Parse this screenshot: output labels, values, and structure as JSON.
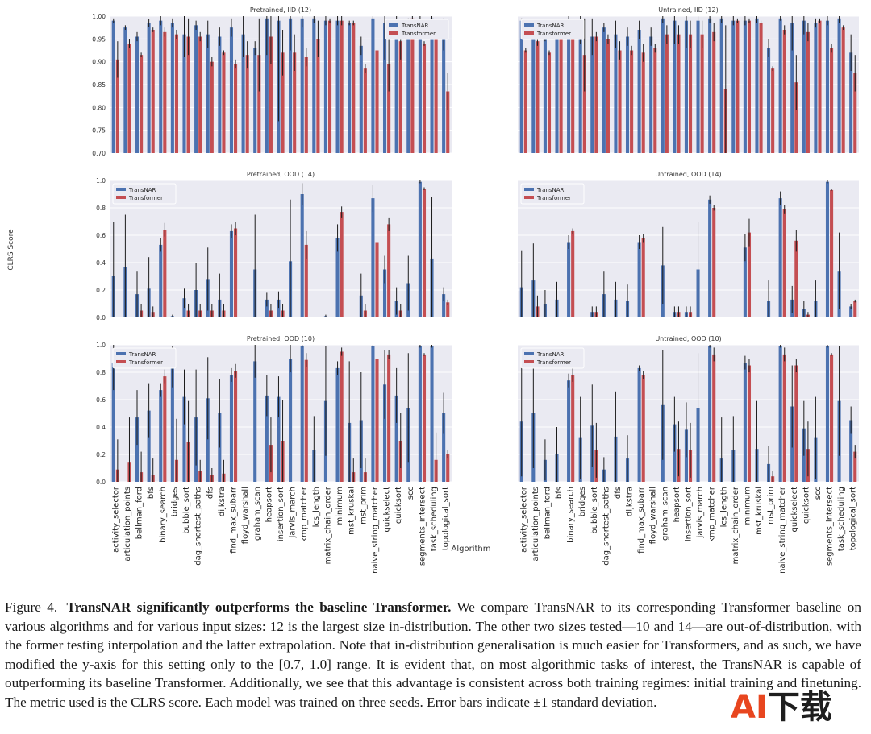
{
  "algorithms": [
    "activity_selector",
    "articulation_points",
    "bellman_ford",
    "bfs",
    "binary_search",
    "bridges",
    "bubble_sort",
    "dag_shortest_paths",
    "dfs",
    "dijkstra",
    "find_max_subarr",
    "floyd_warshall",
    "graham_scan",
    "heapsort",
    "insertion_sort",
    "jarvis_march",
    "kmp_matcher",
    "lcs_length",
    "matrix_chain_order",
    "minimum",
    "mst_kruskal",
    "mst_prim",
    "naive_string_matcher",
    "quickselect",
    "quicksort",
    "scc",
    "segments_intersect",
    "task_scheduling",
    "topological_sort"
  ],
  "figure": {
    "ylabel": "CLRS Score",
    "xlabel": "Algorithm",
    "legend": [
      "TransNAR",
      "Transformer"
    ],
    "colors": {
      "transnar": "#4c72b0",
      "transformer": "#c44e52",
      "panel_bg": "#eaeaf2",
      "grid": "#ffffff",
      "error_bar": "#1c1c1c"
    }
  },
  "chart_data": [
    {
      "type": "bar",
      "title": "Pretrained, IID (12)",
      "ylim": [
        0.7,
        1.0
      ],
      "yticks": [
        "0.70",
        "0.75",
        "0.80",
        "0.85",
        "0.90",
        "0.95",
        "1.00"
      ],
      "yvals": [
        0.7,
        0.75,
        0.8,
        0.85,
        0.9,
        0.95,
        1.0
      ],
      "legend_position": "top-right",
      "grid": true,
      "series": [
        {
          "name": "TransNAR",
          "values": [
            0.99,
            0.975,
            0.955,
            0.985,
            0.99,
            0.985,
            0.96,
            0.98,
            0.96,
            0.955,
            0.975,
            0.96,
            0.93,
            0.995,
            0.99,
            0.995,
            0.995,
            0.995,
            0.99,
            0.99,
            0.985,
            0.935,
            0.995,
            0.985,
            0.99,
            0.985,
            0.99,
            0.995,
            0.96
          ],
          "errors": [
            0.005,
            0.005,
            0.01,
            0.008,
            0.01,
            0.01,
            0.05,
            0.01,
            0.03,
            0.02,
            0.02,
            0.05,
            0.015,
            0.08,
            0.22,
            0.07,
            0.02,
            0.01,
            0.01,
            0.01,
            0.005,
            0.02,
            0.005,
            0.08,
            0.03,
            0.01,
            0.01,
            0.01,
            0.035
          ]
        },
        {
          "name": "Transformer",
          "values": [
            0.905,
            0.94,
            0.915,
            0.97,
            0.965,
            0.96,
            0.955,
            0.955,
            0.9,
            0.92,
            0.895,
            0.915,
            0.915,
            0.955,
            0.92,
            0.92,
            0.91,
            0.95,
            0.99,
            0.99,
            0.985,
            0.885,
            0.925,
            0.895,
            0.945,
            0.995,
            0.94,
            0.975,
            0.835
          ],
          "errors": [
            0.04,
            0.01,
            0.005,
            0.005,
            0.01,
            0.01,
            0.04,
            0.01,
            0.01,
            0.005,
            0.01,
            0.03,
            0.08,
            0.06,
            0.05,
            0.04,
            0.02,
            0.04,
            0.005,
            0.01,
            0.005,
            0.01,
            0.03,
            0.06,
            0.04,
            0.005,
            0.005,
            0.005,
            0.04
          ]
        }
      ]
    },
    {
      "type": "bar",
      "title": "Untrained, IID (12)",
      "ylim": [
        0.7,
        1.0
      ],
      "yticks": [],
      "yvals": [
        0.7,
        0.75,
        0.8,
        0.85,
        0.9,
        0.95,
        1.0
      ],
      "legend_position": "top-left",
      "grid": true,
      "series": [
        {
          "name": "TransNAR",
          "values": [
            0.99,
            0.975,
            0.955,
            0.985,
            0.99,
            0.97,
            0.955,
            0.975,
            0.96,
            0.955,
            0.97,
            0.955,
            0.995,
            0.99,
            0.99,
            0.99,
            0.995,
            0.995,
            0.99,
            0.99,
            0.995,
            0.93,
            0.995,
            0.985,
            0.99,
            0.985,
            0.99,
            0.995,
            0.92
          ],
          "errors": [
            0.005,
            0.005,
            0.01,
            0.008,
            0.01,
            0.03,
            0.04,
            0.01,
            0.03,
            0.02,
            0.02,
            0.02,
            0.01,
            0.05,
            0.06,
            0.02,
            0.01,
            0.01,
            0.01,
            0.01,
            0.01,
            0.02,
            0.005,
            0.06,
            0.03,
            0.01,
            0.01,
            0.01,
            0.04
          ]
        },
        {
          "name": "Transformer",
          "values": [
            0.925,
            0.945,
            0.92,
            0.97,
            0.965,
            0.915,
            0.955,
            0.95,
            0.925,
            0.925,
            0.92,
            0.93,
            0.96,
            0.96,
            0.96,
            0.96,
            0.965,
            0.84,
            0.99,
            0.99,
            0.985,
            0.885,
            0.97,
            0.855,
            0.965,
            0.99,
            0.93,
            0.975,
            0.875
          ],
          "errors": [
            0.005,
            0.01,
            0.005,
            0.005,
            0.01,
            0.08,
            0.01,
            0.01,
            0.02,
            0.01,
            0.02,
            0.01,
            0.02,
            0.02,
            0.03,
            0.03,
            0.02,
            0.14,
            0.005,
            0.005,
            0.005,
            0.005,
            0.01,
            0.06,
            0.02,
            0.005,
            0.01,
            0.005,
            0.04
          ]
        }
      ]
    },
    {
      "type": "bar",
      "title": "Pretrained, OOD (14)",
      "ylim": [
        0.0,
        1.0
      ],
      "yticks": [
        "0.0",
        "0.2",
        "0.4",
        "0.6",
        "0.8",
        "1.0"
      ],
      "yvals": [
        0.0,
        0.2,
        0.4,
        0.6,
        0.8,
        1.0
      ],
      "legend_position": "top-left",
      "grid": true,
      "series": [
        {
          "name": "TransNAR",
          "values": [
            0.3,
            0.37,
            0.17,
            0.21,
            0.53,
            0.01,
            0.14,
            0.2,
            0.28,
            0.13,
            0.63,
            0.0,
            0.35,
            0.13,
            0.13,
            0.41,
            0.9,
            0.0,
            0.01,
            0.58,
            0.0,
            0.16,
            0.87,
            0.35,
            0.12,
            0.25,
            0.99,
            0.43,
            0.17
          ],
          "errors": [
            0.4,
            0.38,
            0.17,
            0.23,
            0.05,
            0.01,
            0.07,
            0.2,
            0.23,
            0.19,
            0.05,
            0.0,
            0.4,
            0.05,
            0.06,
            0.45,
            0.08,
            0.0,
            0.01,
            0.1,
            0.0,
            0.16,
            0.1,
            0.1,
            0.1,
            0.2,
            0.01,
            0.45,
            0.05
          ]
        },
        {
          "name": "Transformer",
          "values": [
            0.0,
            0.0,
            0.05,
            0.04,
            0.64,
            0.0,
            0.05,
            0.05,
            0.05,
            0.05,
            0.65,
            0.0,
            0.0,
            0.05,
            0.05,
            0.0,
            0.53,
            0.0,
            0.0,
            0.77,
            0.0,
            0.05,
            0.55,
            0.68,
            0.05,
            0.0,
            0.94,
            0.0,
            0.11
          ],
          "errors": [
            0.0,
            0.0,
            0.05,
            0.04,
            0.05,
            0.0,
            0.05,
            0.05,
            0.05,
            0.05,
            0.05,
            0.0,
            0.0,
            0.05,
            0.05,
            0.0,
            0.1,
            0.0,
            0.0,
            0.04,
            0.0,
            0.05,
            0.1,
            0.05,
            0.05,
            0.0,
            0.01,
            0.0,
            0.02
          ]
        }
      ]
    },
    {
      "type": "bar",
      "title": "Untrained, OOD (14)",
      "ylim": [
        0.0,
        1.0
      ],
      "yticks": [],
      "yvals": [
        0.0,
        0.2,
        0.4,
        0.6,
        0.8,
        1.0
      ],
      "legend_position": "top-left",
      "grid": true,
      "series": [
        {
          "name": "TransNAR",
          "values": [
            0.22,
            0.27,
            0.1,
            0.13,
            0.55,
            0.0,
            0.04,
            0.17,
            0.13,
            0.12,
            0.55,
            0.0,
            0.38,
            0.04,
            0.04,
            0.35,
            0.86,
            0.0,
            0.0,
            0.51,
            0.0,
            0.12,
            0.87,
            0.13,
            0.06,
            0.12,
            0.99,
            0.34,
            0.08
          ],
          "errors": [
            0.27,
            0.27,
            0.1,
            0.13,
            0.05,
            0.0,
            0.04,
            0.17,
            0.13,
            0.12,
            0.05,
            0.0,
            0.28,
            0.04,
            0.04,
            0.35,
            0.03,
            0.0,
            0.0,
            0.1,
            0.0,
            0.15,
            0.05,
            0.1,
            0.06,
            0.15,
            0.01,
            0.28,
            0.02
          ]
        },
        {
          "name": "Transformer",
          "values": [
            0.0,
            0.08,
            0.0,
            0.0,
            0.63,
            0.0,
            0.04,
            0.0,
            0.0,
            0.0,
            0.58,
            0.0,
            0.0,
            0.04,
            0.04,
            0.0,
            0.8,
            0.0,
            0.0,
            0.62,
            0.0,
            0.0,
            0.79,
            0.56,
            0.02,
            0.0,
            0.93,
            0.0,
            0.12
          ],
          "errors": [
            0.0,
            0.08,
            0.0,
            0.0,
            0.02,
            0.0,
            0.04,
            0.0,
            0.0,
            0.0,
            0.03,
            0.0,
            0.0,
            0.04,
            0.04,
            0.0,
            0.02,
            0.0,
            0.0,
            0.1,
            0.0,
            0.0,
            0.03,
            0.08,
            0.02,
            0.0,
            0.005,
            0.0,
            0.01
          ]
        }
      ]
    },
    {
      "type": "bar",
      "title": "Pretrained, OOD (10)",
      "ylim": [
        0.0,
        1.0
      ],
      "yticks": [
        "0.0",
        "0.2",
        "0.4",
        "0.6",
        "0.8",
        "1.0"
      ],
      "yvals": [
        0.0,
        0.2,
        0.4,
        0.6,
        0.8,
        1.0
      ],
      "legend_position": "top-left",
      "grid": true,
      "series": [
        {
          "name": "TransNAR",
          "values": [
            0.87,
            0.0,
            0.47,
            0.52,
            0.67,
            0.84,
            0.62,
            0.47,
            0.61,
            0.5,
            0.78,
            0.0,
            0.88,
            0.63,
            0.62,
            0.9,
            0.99,
            0.23,
            0.59,
            0.83,
            0.43,
            0.45,
            0.99,
            0.71,
            0.63,
            0.54,
            0.99,
            0.99,
            0.5
          ],
          "errors": [
            0.2,
            0.0,
            0.2,
            0.2,
            0.05,
            0.15,
            0.2,
            0.35,
            0.3,
            0.25,
            0.05,
            0.0,
            0.12,
            0.15,
            0.15,
            0.1,
            0.01,
            0.25,
            0.4,
            0.05,
            0.45,
            0.35,
            0.01,
            0.25,
            0.2,
            0.4,
            0.01,
            0.01,
            0.15
          ]
        },
        {
          "name": "Transformer",
          "values": [
            0.09,
            0.14,
            0.07,
            0.05,
            0.77,
            0.16,
            0.29,
            0.08,
            0.05,
            0.06,
            0.81,
            0.0,
            0.0,
            0.27,
            0.3,
            0.0,
            0.89,
            0.0,
            0.0,
            0.95,
            0.07,
            0.07,
            0.9,
            0.93,
            0.3,
            0.0,
            0.93,
            0.16,
            0.2
          ],
          "errors": [
            0.22,
            0.33,
            0.15,
            0.12,
            0.05,
            0.3,
            0.3,
            0.08,
            0.05,
            0.1,
            0.05,
            0.0,
            0.0,
            0.2,
            0.3,
            0.0,
            0.05,
            0.0,
            0.0,
            0.03,
            0.1,
            0.1,
            0.05,
            0.03,
            0.2,
            0.0,
            0.01,
            0.2,
            0.03
          ]
        }
      ]
    },
    {
      "type": "bar",
      "title": "Untrained, OOD (10)",
      "ylim": [
        0.0,
        1.0
      ],
      "yticks": [],
      "yvals": [
        0.0,
        0.2,
        0.4,
        0.6,
        0.8,
        1.0
      ],
      "legend_position": "top-left",
      "grid": true,
      "series": [
        {
          "name": "TransNAR",
          "values": [
            0.44,
            0.5,
            0.16,
            0.2,
            0.74,
            0.32,
            0.41,
            0.09,
            0.33,
            0.17,
            0.83,
            0.0,
            0.56,
            0.42,
            0.38,
            0.54,
            0.99,
            0.17,
            0.23,
            0.87,
            0.24,
            0.13,
            0.99,
            0.55,
            0.39,
            0.32,
            0.99,
            0.59,
            0.45
          ],
          "errors": [
            0.4,
            0.4,
            0.15,
            0.2,
            0.05,
            0.3,
            0.3,
            0.09,
            0.33,
            0.17,
            0.02,
            0.0,
            0.4,
            0.2,
            0.2,
            0.4,
            0.01,
            0.3,
            0.25,
            0.05,
            0.35,
            0.13,
            0.01,
            0.3,
            0.2,
            0.3,
            0.01,
            0.4,
            0.1
          ]
        },
        {
          "name": "Transformer",
          "values": [
            0.0,
            0.0,
            0.0,
            0.0,
            0.78,
            0.0,
            0.23,
            0.0,
            0.0,
            0.0,
            0.78,
            0.0,
            0.0,
            0.24,
            0.23,
            0.0,
            0.93,
            0.0,
            0.0,
            0.85,
            0.0,
            0.04,
            0.93,
            0.85,
            0.24,
            0.0,
            0.93,
            0.0,
            0.22
          ],
          "errors": [
            0.0,
            0.0,
            0.0,
            0.0,
            0.05,
            0.0,
            0.2,
            0.0,
            0.0,
            0.0,
            0.03,
            0.0,
            0.0,
            0.2,
            0.2,
            0.0,
            0.05,
            0.0,
            0.0,
            0.05,
            0.0,
            0.04,
            0.05,
            0.05,
            0.2,
            0.0,
            0.01,
            0.0,
            0.05
          ]
        }
      ]
    }
  ],
  "caption": {
    "number": "Figure 4.",
    "lead": "TransNAR significantly outperforms the baseline Transformer.",
    "text": "We compare TransNAR to its corresponding Transformer baseline on various algorithms and for various input sizes: 12 is the largest size in-distribution. The other two sizes tested—10 and 14—are out-of-distribution, with the former testing interpolation and the latter extrapolation. Note that in-distribution generalisation is much easier for Transformers, and as such, we have modified the y-axis for this setting only to the [0.7, 1.0] range. It is evident that, on most algorithmic tasks of interest, the TransNAR is capable of outperforming its baseline Transformer. Additionally, we see that this advantage is consistent across both training regimes: initial training and finetuning. The metric used is the CLRS score. Each model was trained on three seeds. Error bars indicate ±1 standard deviation."
  },
  "watermark": {
    "part1": "AI",
    "part2": "下载"
  }
}
